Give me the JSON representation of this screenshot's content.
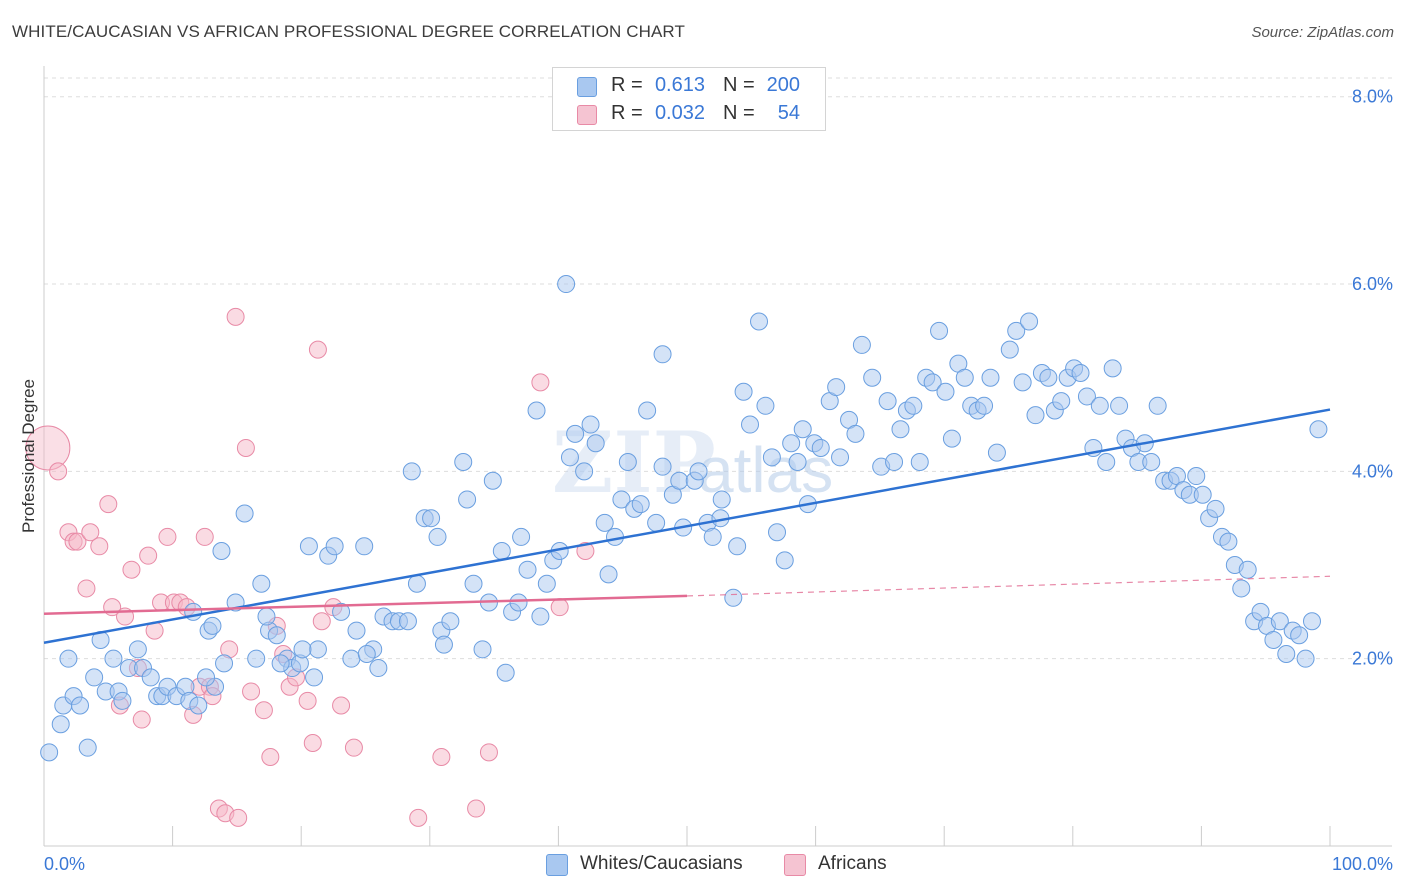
{
  "title": "WHITE/CAUCASIAN VS AFRICAN PROFESSIONAL DEGREE CORRELATION CHART",
  "source": "Source: ZipAtlas.com",
  "watermark": {
    "zip": "ZIP",
    "atlas": "atlas"
  },
  "colors": {
    "blue_fill": "#a9c8f0",
    "blue_stroke": "#6a9fe0",
    "blue_line": "#2e72d2",
    "pink_fill": "#f5b8c8",
    "pink_stroke": "#e88aa6",
    "pink_line": "#e26b92",
    "axis_text": "#3a78d6",
    "grid": "#dddddd"
  },
  "legend": {
    "rows": [
      {
        "r_label": "R =",
        "r_value": "0.613",
        "n_label": "N =",
        "n_value": "200"
      },
      {
        "r_label": "R =",
        "r_value": "0.032",
        "n_label": "N =",
        "n_value": "54"
      }
    ]
  },
  "bottom_legend": {
    "series1": "Whites/Caucasians",
    "series2": "Africans"
  },
  "chart_data": {
    "type": "scatter",
    "title": "WHITE/CAUCASIAN VS AFRICAN PROFESSIONAL DEGREE CORRELATION CHART",
    "xlabel": "",
    "ylabel": "Professional Degree",
    "xlim": [
      0,
      100
    ],
    "ylim": [
      0,
      8.2
    ],
    "x_tick_labels": [
      "0.0%",
      "100.0%"
    ],
    "y_ticks": [
      2,
      4,
      6,
      8
    ],
    "y_tick_labels": [
      "2.0%",
      "4.0%",
      "6.0%",
      "8.0%"
    ],
    "grid": true,
    "legend_position": "top-center",
    "series": [
      {
        "name": "Whites/Caucasians",
        "color": "#6a9fe0",
        "r": 0.613,
        "n": 200,
        "trend": {
          "x": [
            0,
            100
          ],
          "y": [
            2.17,
            4.66
          ]
        },
        "points": [
          [
            0.4,
            1.0
          ],
          [
            1.3,
            1.3
          ],
          [
            1.5,
            1.5
          ],
          [
            1.9,
            2.0
          ],
          [
            2.3,
            1.6
          ],
          [
            2.8,
            1.5
          ],
          [
            3.4,
            1.05
          ],
          [
            3.9,
            1.8
          ],
          [
            4.4,
            2.2
          ],
          [
            4.8,
            1.65
          ],
          [
            5.4,
            2.0
          ],
          [
            5.8,
            1.65
          ],
          [
            6.1,
            1.55
          ],
          [
            6.6,
            1.9
          ],
          [
            7.3,
            2.1
          ],
          [
            7.7,
            1.9
          ],
          [
            8.3,
            1.8
          ],
          [
            8.8,
            1.6
          ],
          [
            9.2,
            1.6
          ],
          [
            9.6,
            1.7
          ],
          [
            10.3,
            1.6
          ],
          [
            11.0,
            1.7
          ],
          [
            11.3,
            1.55
          ],
          [
            11.6,
            2.5
          ],
          [
            12.0,
            1.5
          ],
          [
            12.8,
            2.3
          ],
          [
            13.3,
            1.7
          ],
          [
            12.6,
            1.8
          ],
          [
            14.0,
            1.95
          ],
          [
            13.8,
            3.15
          ],
          [
            14.9,
            2.6
          ],
          [
            15.6,
            3.55
          ],
          [
            16.5,
            2.0
          ],
          [
            16.9,
            2.8
          ],
          [
            17.5,
            2.3
          ],
          [
            18.1,
            2.25
          ],
          [
            18.9,
            2.0
          ],
          [
            19.3,
            1.9
          ],
          [
            19.9,
            1.95
          ],
          [
            20.6,
            3.2
          ],
          [
            21.0,
            1.8
          ],
          [
            21.3,
            2.1
          ],
          [
            22.1,
            3.1
          ],
          [
            22.6,
            3.2
          ],
          [
            23.1,
            2.5
          ],
          [
            23.9,
            2.0
          ],
          [
            24.3,
            2.3
          ],
          [
            24.9,
            3.2
          ],
          [
            25.6,
            2.1
          ],
          [
            26.0,
            1.9
          ],
          [
            26.4,
            2.45
          ],
          [
            27.1,
            2.4
          ],
          [
            27.6,
            2.4
          ],
          [
            28.3,
            2.4
          ],
          [
            28.6,
            4.0
          ],
          [
            29.0,
            2.8
          ],
          [
            29.6,
            3.5
          ],
          [
            30.1,
            3.5
          ],
          [
            30.6,
            3.3
          ],
          [
            30.9,
            2.3
          ],
          [
            31.6,
            2.4
          ],
          [
            32.6,
            4.1
          ],
          [
            32.9,
            3.7
          ],
          [
            33.4,
            2.8
          ],
          [
            34.1,
            2.1
          ],
          [
            34.6,
            2.6
          ],
          [
            34.9,
            3.9
          ],
          [
            35.6,
            3.15
          ],
          [
            35.9,
            1.85
          ],
          [
            36.4,
            2.5
          ],
          [
            37.1,
            3.3
          ],
          [
            37.6,
            2.95
          ],
          [
            38.3,
            4.65
          ],
          [
            38.6,
            2.45
          ],
          [
            39.1,
            2.8
          ],
          [
            39.6,
            3.05
          ],
          [
            40.1,
            3.15
          ],
          [
            40.6,
            6.0
          ],
          [
            40.9,
            4.15
          ],
          [
            41.3,
            4.4
          ],
          [
            42.0,
            4.0
          ],
          [
            42.5,
            4.5
          ],
          [
            42.9,
            4.3
          ],
          [
            43.6,
            3.45
          ],
          [
            43.9,
            2.9
          ],
          [
            44.4,
            3.3
          ],
          [
            44.9,
            3.7
          ],
          [
            45.4,
            4.1
          ],
          [
            45.9,
            3.6
          ],
          [
            46.4,
            3.65
          ],
          [
            47.6,
            3.45
          ],
          [
            48.1,
            4.05
          ],
          [
            48.1,
            5.25
          ],
          [
            48.9,
            3.75
          ],
          [
            49.4,
            3.9
          ],
          [
            49.7,
            3.4
          ],
          [
            50.6,
            3.9
          ],
          [
            50.9,
            4.0
          ],
          [
            51.6,
            3.45
          ],
          [
            52.0,
            3.3
          ],
          [
            52.6,
            3.5
          ],
          [
            52.7,
            3.7
          ],
          [
            53.6,
            2.65
          ],
          [
            53.9,
            3.2
          ],
          [
            54.4,
            4.85
          ],
          [
            54.9,
            4.5
          ],
          [
            55.6,
            5.6
          ],
          [
            56.1,
            4.7
          ],
          [
            56.6,
            4.15
          ],
          [
            57.0,
            3.35
          ],
          [
            57.6,
            3.05
          ],
          [
            58.1,
            4.3
          ],
          [
            58.6,
            4.1
          ],
          [
            59.0,
            4.45
          ],
          [
            59.4,
            3.65
          ],
          [
            59.9,
            4.3
          ],
          [
            60.4,
            4.25
          ],
          [
            61.1,
            4.75
          ],
          [
            61.6,
            4.9
          ],
          [
            61.9,
            4.15
          ],
          [
            62.6,
            4.55
          ],
          [
            63.1,
            4.4
          ],
          [
            63.6,
            5.35
          ],
          [
            64.4,
            5.0
          ],
          [
            65.1,
            4.05
          ],
          [
            65.6,
            4.75
          ],
          [
            66.1,
            4.1
          ],
          [
            66.6,
            4.45
          ],
          [
            67.1,
            4.65
          ],
          [
            67.6,
            4.7
          ],
          [
            68.1,
            4.1
          ],
          [
            68.6,
            5.0
          ],
          [
            69.1,
            4.95
          ],
          [
            69.6,
            5.5
          ],
          [
            70.1,
            4.85
          ],
          [
            70.6,
            4.35
          ],
          [
            71.1,
            5.15
          ],
          [
            71.6,
            5.0
          ],
          [
            72.1,
            4.7
          ],
          [
            72.6,
            4.65
          ],
          [
            73.1,
            4.7
          ],
          [
            73.6,
            5.0
          ],
          [
            74.1,
            4.2
          ],
          [
            75.1,
            5.3
          ],
          [
            75.6,
            5.5
          ],
          [
            76.1,
            4.95
          ],
          [
            76.6,
            5.6
          ],
          [
            77.1,
            4.6
          ],
          [
            77.6,
            5.05
          ],
          [
            78.1,
            5.0
          ],
          [
            78.6,
            4.65
          ],
          [
            79.1,
            4.75
          ],
          [
            79.6,
            5.0
          ],
          [
            80.1,
            5.1
          ],
          [
            80.6,
            5.05
          ],
          [
            81.1,
            4.8
          ],
          [
            81.6,
            4.25
          ],
          [
            82.1,
            4.7
          ],
          [
            82.6,
            4.1
          ],
          [
            83.1,
            5.1
          ],
          [
            83.6,
            4.7
          ],
          [
            84.1,
            4.35
          ],
          [
            84.6,
            4.25
          ],
          [
            85.1,
            4.1
          ],
          [
            85.6,
            4.3
          ],
          [
            86.1,
            4.1
          ],
          [
            86.6,
            4.7
          ],
          [
            87.1,
            3.9
          ],
          [
            87.6,
            3.9
          ],
          [
            88.1,
            3.95
          ],
          [
            88.6,
            3.8
          ],
          [
            89.1,
            3.75
          ],
          [
            89.6,
            3.95
          ],
          [
            90.1,
            3.75
          ],
          [
            90.6,
            3.5
          ],
          [
            91.1,
            3.6
          ],
          [
            91.6,
            3.3
          ],
          [
            92.1,
            3.25
          ],
          [
            92.6,
            3.0
          ],
          [
            93.1,
            2.75
          ],
          [
            93.6,
            2.95
          ],
          [
            94.1,
            2.4
          ],
          [
            94.6,
            2.5
          ],
          [
            95.1,
            2.35
          ],
          [
            95.6,
            2.2
          ],
          [
            96.1,
            2.4
          ],
          [
            96.6,
            2.05
          ],
          [
            97.1,
            2.3
          ],
          [
            97.6,
            2.25
          ],
          [
            98.1,
            2.0
          ],
          [
            98.6,
            2.4
          ],
          [
            99.1,
            4.45
          ],
          [
            13.1,
            2.35
          ],
          [
            17.3,
            2.45
          ],
          [
            18.4,
            1.95
          ],
          [
            20.1,
            2.1
          ],
          [
            25.1,
            2.05
          ],
          [
            31.1,
            2.15
          ],
          [
            36.9,
            2.6
          ],
          [
            46.9,
            4.65
          ]
        ]
      },
      {
        "name": "Africans",
        "color": "#e88aa6",
        "r": 0.032,
        "n": 54,
        "trend": {
          "x": [
            0,
            50
          ],
          "y": [
            2.48,
            2.67
          ],
          "dashed_to": {
            "x": 100,
            "y": 2.88
          }
        },
        "points": [
          [
            0.3,
            4.25
          ],
          [
            1.1,
            4.0
          ],
          [
            1.9,
            3.35
          ],
          [
            2.3,
            3.25
          ],
          [
            2.6,
            3.25
          ],
          [
            3.3,
            2.75
          ],
          [
            3.6,
            3.35
          ],
          [
            4.3,
            3.2
          ],
          [
            5.0,
            3.65
          ],
          [
            5.3,
            2.55
          ],
          [
            5.9,
            1.5
          ],
          [
            6.3,
            2.45
          ],
          [
            6.8,
            2.95
          ],
          [
            7.3,
            1.9
          ],
          [
            7.6,
            1.35
          ],
          [
            8.1,
            3.1
          ],
          [
            8.6,
            2.3
          ],
          [
            9.1,
            2.6
          ],
          [
            9.6,
            3.3
          ],
          [
            10.1,
            2.6
          ],
          [
            10.6,
            2.6
          ],
          [
            11.1,
            2.55
          ],
          [
            11.6,
            1.4
          ],
          [
            12.1,
            1.7
          ],
          [
            12.5,
            3.3
          ],
          [
            12.9,
            1.7
          ],
          [
            13.1,
            1.6
          ],
          [
            13.6,
            0.4
          ],
          [
            14.1,
            0.35
          ],
          [
            14.4,
            2.1
          ],
          [
            14.9,
            5.65
          ],
          [
            15.1,
            0.3
          ],
          [
            15.7,
            4.25
          ],
          [
            16.1,
            1.65
          ],
          [
            17.1,
            1.45
          ],
          [
            17.6,
            0.95
          ],
          [
            18.1,
            2.35
          ],
          [
            18.6,
            2.05
          ],
          [
            19.1,
            1.7
          ],
          [
            19.6,
            1.8
          ],
          [
            20.5,
            1.55
          ],
          [
            20.9,
            1.1
          ],
          [
            21.3,
            5.3
          ],
          [
            21.6,
            2.4
          ],
          [
            22.5,
            2.55
          ],
          [
            23.1,
            1.5
          ],
          [
            24.1,
            1.05
          ],
          [
            29.1,
            0.3
          ],
          [
            30.9,
            0.95
          ],
          [
            33.6,
            0.4
          ],
          [
            34.6,
            1.0
          ],
          [
            38.6,
            4.95
          ],
          [
            40.1,
            2.55
          ],
          [
            42.1,
            3.15
          ]
        ]
      }
    ]
  }
}
